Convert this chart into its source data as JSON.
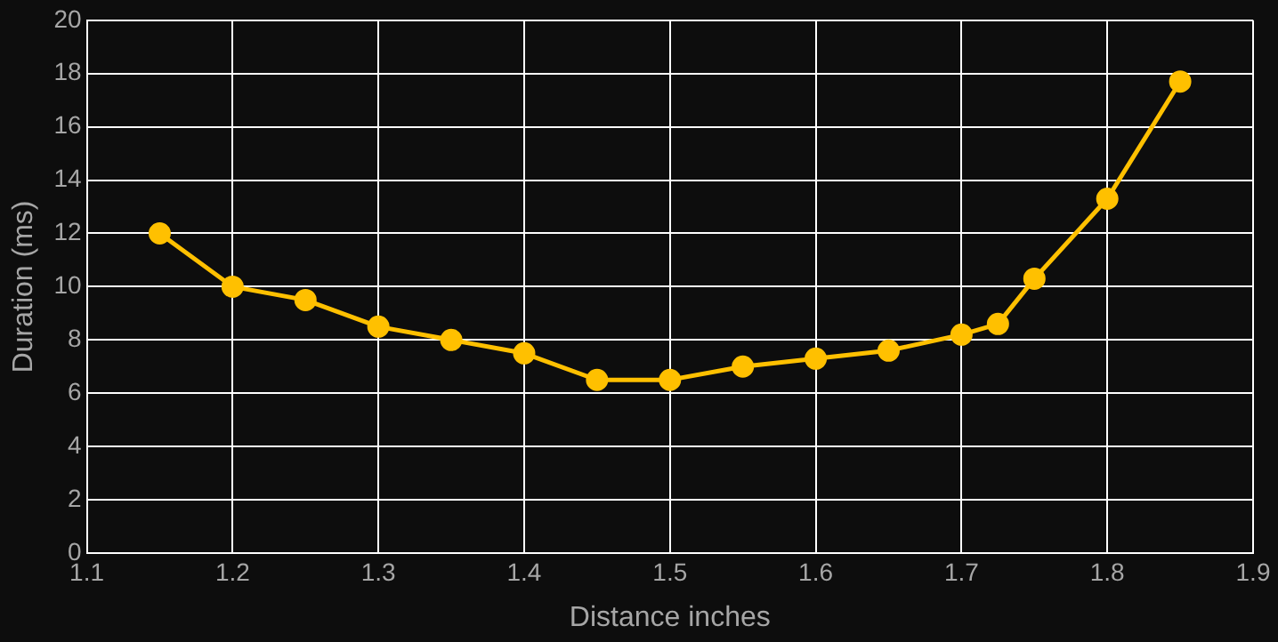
{
  "chart_data": {
    "type": "line",
    "xlabel": "Distance inches",
    "ylabel": "Duration (ms)",
    "x": [
      1.15,
      1.2,
      1.25,
      1.3,
      1.35,
      1.4,
      1.45,
      1.5,
      1.55,
      1.6,
      1.65,
      1.7,
      1.725,
      1.75,
      1.8,
      1.85
    ],
    "series": [
      {
        "color": "#ffc000",
        "values": [
          12,
          10,
          9.5,
          8.5,
          8,
          7.5,
          6.5,
          6.5,
          7,
          7.3,
          7.6,
          8.2,
          8.6,
          10.3,
          13.3,
          17.7
        ]
      }
    ],
    "xlim": [
      1.1,
      1.9
    ],
    "xticks": [
      1.1,
      1.2,
      1.3,
      1.4,
      1.5,
      1.6,
      1.7,
      1.8,
      1.9
    ],
    "ylim": [
      0,
      20
    ],
    "yticks": [
      0,
      2,
      4,
      6,
      8,
      10,
      12,
      14,
      16,
      18,
      20
    ],
    "grid": true,
    "marker": "circle",
    "line_style": "solid"
  }
}
